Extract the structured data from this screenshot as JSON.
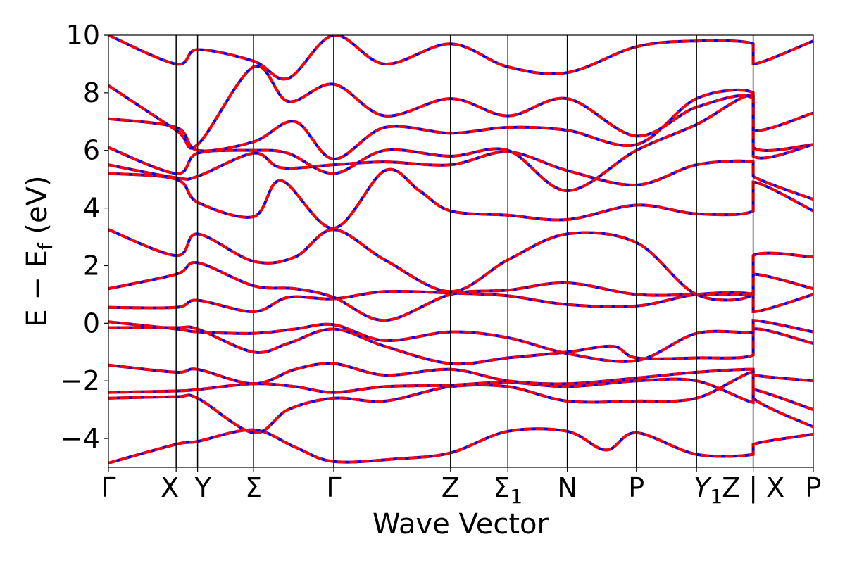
{
  "chart_data": {
    "type": "line",
    "title": "",
    "xlabel": "Wave Vector",
    "ylabel": "E − E_f (eV)",
    "ylabel_parts": {
      "main": "E − E",
      "sub": "f",
      "unit": " (eV)"
    },
    "ylim": [
      -5,
      10
    ],
    "xlim": [
      0,
      10.2
    ],
    "yticks": [
      -4,
      -2,
      0,
      2,
      4,
      6,
      8,
      10
    ],
    "ytick_labels": [
      "−4",
      "−2",
      "0",
      "2",
      "4",
      "6",
      "8",
      "10"
    ],
    "grid": false,
    "legend": "none",
    "kpoints": [
      {
        "label": "Γ",
        "sub": "",
        "x": 0.0
      },
      {
        "label": "X",
        "sub": "",
        "x": 0.98
      },
      {
        "label": "Y",
        "sub": "",
        "x": 1.29
      },
      {
        "label": "Σ",
        "sub": "",
        "x": 2.1
      },
      {
        "label": "Γ",
        "sub": "",
        "x": 3.26
      },
      {
        "label": "Z",
        "sub": "",
        "x": 4.95
      },
      {
        "label": "Σ",
        "sub": "1",
        "x": 5.78
      },
      {
        "label": "N",
        "sub": "",
        "x": 6.64
      },
      {
        "label": "P",
        "sub": "",
        "x": 7.64
      },
      {
        "label": "Y",
        "sub": "1",
        "x": 8.51
      },
      {
        "label": "Z | X",
        "sub": "",
        "x": 9.33
      },
      {
        "label": "P",
        "sub": "",
        "x": 10.2
      }
    ],
    "series_style": {
      "solid_color": "#0000ff",
      "dashed_color": "#ff0000"
    },
    "series": [
      {
        "values": [
          [
            0,
            -4.85
          ],
          [
            0.98,
            -4.2
          ],
          [
            1.29,
            -4.1
          ],
          [
            2.1,
            -3.7
          ],
          [
            2.7,
            -4.3
          ],
          [
            3.26,
            -4.8
          ],
          [
            4.2,
            -4.7
          ],
          [
            4.95,
            -4.5
          ],
          [
            5.78,
            -3.75
          ],
          [
            6.64,
            -3.75
          ],
          [
            7.2,
            -4.4
          ],
          [
            7.64,
            -3.8
          ],
          [
            8.51,
            -4.55
          ],
          [
            9.33,
            -4.55
          ],
          [
            9.33,
            -4.2
          ],
          [
            10.2,
            -3.85
          ]
        ]
      },
      {
        "values": [
          [
            0,
            -2.6
          ],
          [
            0.98,
            -2.55
          ],
          [
            1.29,
            -2.6
          ],
          [
            2.1,
            -3.8
          ],
          [
            2.6,
            -3.0
          ],
          [
            3.26,
            -2.6
          ],
          [
            4.0,
            -2.7
          ],
          [
            4.95,
            -2.2
          ],
          [
            5.78,
            -2.2
          ],
          [
            6.64,
            -2.7
          ],
          [
            7.64,
            -2.7
          ],
          [
            8.51,
            -2.6
          ],
          [
            9.33,
            -1.7
          ],
          [
            9.33,
            -2.6
          ],
          [
            10.2,
            -3.6
          ]
        ]
      },
      {
        "values": [
          [
            0,
            -2.4
          ],
          [
            0.98,
            -2.35
          ],
          [
            1.29,
            -2.3
          ],
          [
            2.1,
            -2.1
          ],
          [
            2.7,
            -2.2
          ],
          [
            3.26,
            -2.4
          ],
          [
            4.0,
            -2.2
          ],
          [
            4.95,
            -2.15
          ],
          [
            5.78,
            -2.05
          ],
          [
            6.64,
            -2.2
          ],
          [
            7.64,
            -2.0
          ],
          [
            8.51,
            -2.0
          ],
          [
            9.33,
            -2.75
          ],
          [
            9.33,
            -2.3
          ],
          [
            10.2,
            -3.0
          ]
        ]
      },
      {
        "values": [
          [
            0,
            -1.45
          ],
          [
            0.98,
            -1.7
          ],
          [
            1.29,
            -1.6
          ],
          [
            2.1,
            -2.1
          ],
          [
            2.7,
            -1.6
          ],
          [
            3.26,
            -1.4
          ],
          [
            4.0,
            -1.8
          ],
          [
            4.95,
            -1.6
          ],
          [
            5.78,
            -2.0
          ],
          [
            6.64,
            -2.1
          ],
          [
            7.64,
            -1.9
          ],
          [
            8.51,
            -1.7
          ],
          [
            9.33,
            -1.6
          ],
          [
            9.33,
            -1.8
          ],
          [
            10.2,
            -2.0
          ]
        ]
      },
      {
        "values": [
          [
            0,
            -0.15
          ],
          [
            0.98,
            -0.15
          ],
          [
            1.29,
            -0.2
          ],
          [
            2.1,
            -1.0
          ],
          [
            2.6,
            -0.7
          ],
          [
            3.26,
            -0.2
          ],
          [
            4.0,
            -0.8
          ],
          [
            4.95,
            -1.4
          ],
          [
            5.78,
            -1.2
          ],
          [
            6.64,
            -1.0
          ],
          [
            7.3,
            -0.8
          ],
          [
            7.64,
            -1.2
          ],
          [
            8.51,
            -1.2
          ],
          [
            9.33,
            -1.1
          ],
          [
            9.33,
            -0.2
          ],
          [
            10.2,
            -0.7
          ]
        ]
      },
      {
        "values": [
          [
            0,
            0.05
          ],
          [
            0.98,
            -0.2
          ],
          [
            1.29,
            -0.3
          ],
          [
            2.1,
            -0.35
          ],
          [
            2.7,
            -0.2
          ],
          [
            3.26,
            -0.05
          ],
          [
            4.0,
            -0.6
          ],
          [
            4.95,
            -0.3
          ],
          [
            5.78,
            -0.5
          ],
          [
            6.64,
            -1.05
          ],
          [
            7.64,
            -1.3
          ],
          [
            8.51,
            -0.35
          ],
          [
            9.33,
            -0.3
          ],
          [
            9.33,
            0.1
          ],
          [
            10.2,
            -0.3
          ]
        ]
      },
      {
        "values": [
          [
            0,
            0.55
          ],
          [
            0.98,
            0.55
          ],
          [
            1.29,
            0.8
          ],
          [
            2.1,
            0.4
          ],
          [
            2.6,
            0.9
          ],
          [
            3.26,
            0.85
          ],
          [
            4.0,
            1.1
          ],
          [
            4.95,
            1.05
          ],
          [
            5.78,
            0.95
          ],
          [
            6.64,
            0.65
          ],
          [
            7.64,
            0.6
          ],
          [
            8.51,
            1.0
          ],
          [
            9.33,
            1.0
          ],
          [
            9.33,
            0.4
          ],
          [
            10.2,
            1.0
          ]
        ]
      },
      {
        "values": [
          [
            0,
            1.2
          ],
          [
            0.98,
            1.7
          ],
          [
            1.29,
            2.1
          ],
          [
            2.1,
            1.3
          ],
          [
            2.7,
            1.2
          ],
          [
            3.26,
            0.9
          ],
          [
            4.0,
            0.1
          ],
          [
            4.95,
            1.0
          ],
          [
            5.78,
            1.15
          ],
          [
            6.64,
            1.4
          ],
          [
            7.64,
            1.0
          ],
          [
            8.51,
            1.0
          ],
          [
            9.33,
            1.05
          ],
          [
            9.33,
            1.7
          ],
          [
            10.2,
            1.2
          ]
        ]
      },
      {
        "values": [
          [
            0,
            3.25
          ],
          [
            0.98,
            2.35
          ],
          [
            1.29,
            3.1
          ],
          [
            2.1,
            2.15
          ],
          [
            2.7,
            2.3
          ],
          [
            3.26,
            3.25
          ],
          [
            4.0,
            2.2
          ],
          [
            4.95,
            1.1
          ],
          [
            5.78,
            2.2
          ],
          [
            6.64,
            3.1
          ],
          [
            7.64,
            2.8
          ],
          [
            8.51,
            1.0
          ],
          [
            9.33,
            1.0
          ],
          [
            9.33,
            2.35
          ],
          [
            10.2,
            2.3
          ]
        ]
      },
      {
        "values": [
          [
            0,
            5.2
          ],
          [
            0.98,
            5.0
          ],
          [
            1.29,
            4.2
          ],
          [
            2.1,
            3.7
          ],
          [
            2.5,
            4.95
          ],
          [
            3.26,
            3.3
          ],
          [
            4.0,
            5.3
          ],
          [
            4.5,
            4.6
          ],
          [
            4.95,
            3.9
          ],
          [
            5.78,
            3.75
          ],
          [
            6.64,
            3.6
          ],
          [
            7.64,
            4.1
          ],
          [
            8.51,
            3.8
          ],
          [
            9.33,
            3.9
          ],
          [
            9.33,
            4.9
          ],
          [
            10.2,
            3.9
          ]
        ]
      },
      {
        "values": [
          [
            0,
            5.5
          ],
          [
            0.98,
            5.05
          ],
          [
            1.29,
            5.1
          ],
          [
            2.1,
            5.9
          ],
          [
            2.5,
            5.4
          ],
          [
            3.26,
            5.5
          ],
          [
            4.0,
            5.6
          ],
          [
            4.95,
            5.5
          ],
          [
            5.78,
            5.95
          ],
          [
            6.64,
            5.3
          ],
          [
            7.64,
            4.8
          ],
          [
            8.51,
            5.5
          ],
          [
            9.33,
            5.6
          ],
          [
            9.33,
            5.1
          ],
          [
            10.2,
            4.3
          ]
        ]
      },
      {
        "values": [
          [
            0,
            6.1
          ],
          [
            0.98,
            5.2
          ],
          [
            1.29,
            5.9
          ],
          [
            2.1,
            6.0
          ],
          [
            2.6,
            5.9
          ],
          [
            3.26,
            5.2
          ],
          [
            4.0,
            6.0
          ],
          [
            4.95,
            5.8
          ],
          [
            5.78,
            6.0
          ],
          [
            6.64,
            4.6
          ],
          [
            7.64,
            6.0
          ],
          [
            8.51,
            6.9
          ],
          [
            9.33,
            7.9
          ],
          [
            9.33,
            6.1
          ],
          [
            10.2,
            6.2
          ]
        ]
      },
      {
        "values": [
          [
            0,
            7.1
          ],
          [
            0.98,
            6.8
          ],
          [
            1.29,
            6.0
          ],
          [
            2.1,
            6.3
          ],
          [
            2.7,
            7.0
          ],
          [
            3.26,
            5.7
          ],
          [
            4.0,
            6.8
          ],
          [
            4.95,
            6.6
          ],
          [
            5.78,
            6.8
          ],
          [
            6.64,
            6.7
          ],
          [
            7.64,
            6.2
          ],
          [
            8.51,
            7.8
          ],
          [
            9.33,
            8.0
          ],
          [
            9.33,
            6.7
          ],
          [
            10.2,
            7.3
          ]
        ]
      },
      {
        "values": [
          [
            0,
            8.25
          ],
          [
            0.98,
            6.7
          ],
          [
            1.29,
            6.2
          ],
          [
            2.1,
            8.9
          ],
          [
            2.6,
            7.7
          ],
          [
            3.26,
            8.3
          ],
          [
            4.0,
            7.2
          ],
          [
            4.95,
            7.8
          ],
          [
            5.78,
            7.2
          ],
          [
            6.64,
            7.8
          ],
          [
            7.64,
            6.5
          ],
          [
            8.51,
            7.5
          ],
          [
            9.33,
            7.8
          ],
          [
            9.33,
            5.8
          ],
          [
            10.2,
            6.2
          ]
        ]
      },
      {
        "values": [
          [
            0,
            10.0
          ],
          [
            0.98,
            9.0
          ],
          [
            1.29,
            9.5
          ],
          [
            2.1,
            9.1
          ],
          [
            2.6,
            8.5
          ],
          [
            3.26,
            10.0
          ],
          [
            4.0,
            9.0
          ],
          [
            4.95,
            9.7
          ],
          [
            5.78,
            8.9
          ],
          [
            6.64,
            8.7
          ],
          [
            7.64,
            9.6
          ],
          [
            8.51,
            9.8
          ],
          [
            9.33,
            9.7
          ],
          [
            9.33,
            9.0
          ],
          [
            10.2,
            9.8
          ]
        ]
      }
    ]
  }
}
